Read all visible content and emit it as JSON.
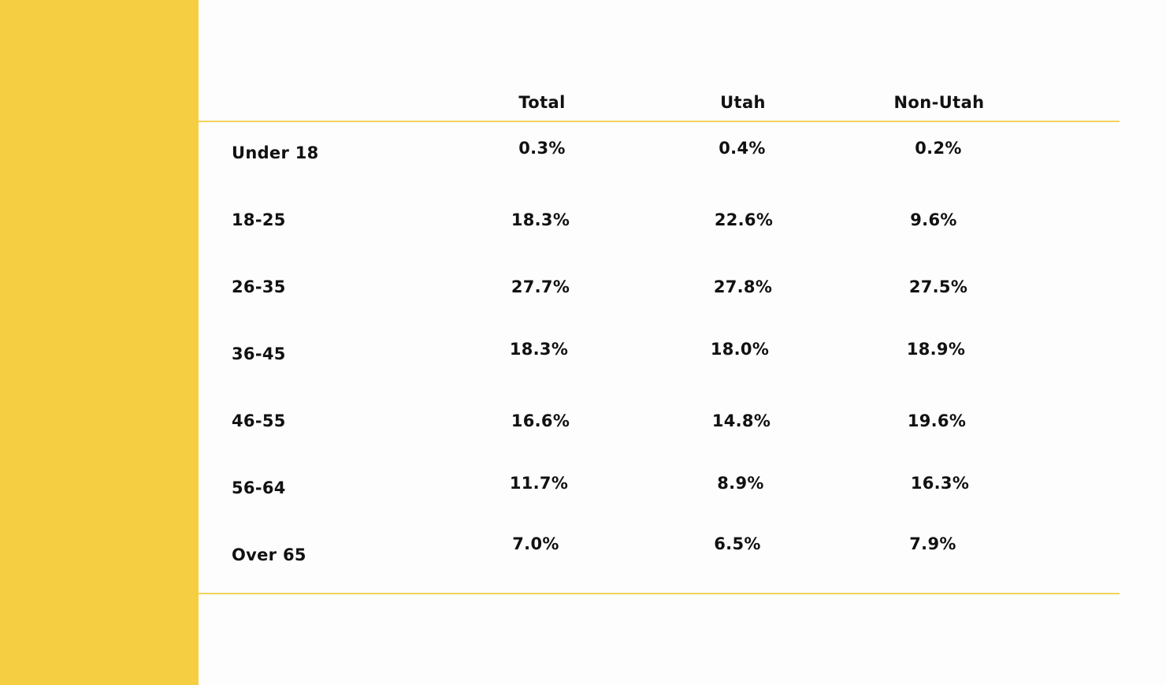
{
  "colors": {
    "sidebar": "#f6ce41",
    "rule": "#f3d25a",
    "text": "#111111",
    "background": "#fdfdfd"
  },
  "chart_data": {
    "type": "table",
    "columns": [
      "Total",
      "Utah",
      "Non-Utah"
    ],
    "rows": [
      {
        "label": "Under 18",
        "values": [
          "0.3%",
          "0.4%",
          "0.2%"
        ]
      },
      {
        "label": "18-25",
        "values": [
          "18.3%",
          "22.6%",
          "9.6%"
        ]
      },
      {
        "label": "26-35",
        "values": [
          "27.7%",
          "27.8%",
          "27.5%"
        ]
      },
      {
        "label": "36-45",
        "values": [
          "18.3%",
          "18.0%",
          "18.9%"
        ]
      },
      {
        "label": "46-55",
        "values": [
          "16.6%",
          "14.8%",
          "19.6%"
        ]
      },
      {
        "label": "56-64",
        "values": [
          "11.7%",
          "8.9%",
          "16.3%"
        ]
      },
      {
        "label": "Over 65",
        "values": [
          "7.0%",
          "6.5%",
          "7.9%"
        ]
      }
    ]
  }
}
